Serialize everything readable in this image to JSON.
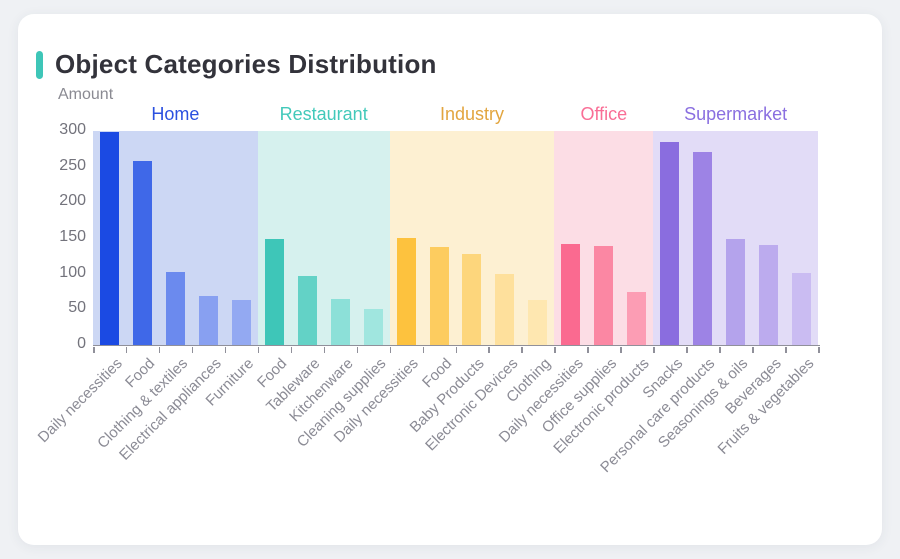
{
  "page": {
    "background": "#eff1f4",
    "card_background": "#ffffff"
  },
  "header": {
    "title": "Object Categories Distribution",
    "accent_color": "#3ec6b8",
    "title_color": "#33333b"
  },
  "chart_data": {
    "type": "bar",
    "title": "Object Categories Distribution",
    "ylabel": "Amount",
    "xlabel": "",
    "ylim": [
      0,
      300
    ],
    "yticks": [
      0,
      50,
      100,
      150,
      200,
      250,
      300
    ],
    "grid": false,
    "legend_position": "group-labels-above-bands",
    "axis_colors": {
      "axis_line": "#90909a",
      "y_tick_label": "#73737c",
      "x_tick_label": "#8b8b95",
      "amount_label": "#8a8a92"
    },
    "groups": [
      {
        "name": "Home",
        "label_color": "#2b50e0",
        "band_color": "#ccd7f4",
        "bars": [
          {
            "category": "Daily necessities",
            "value": 298,
            "color": "#1b4ae3"
          },
          {
            "category": "Food",
            "value": 258,
            "color": "#3f68e8"
          },
          {
            "category": "Clothing & textiles",
            "value": 102,
            "color": "#6b8aee"
          },
          {
            "category": "Electrical appliances",
            "value": 69,
            "color": "#88a0f1"
          },
          {
            "category": "Furniture",
            "value": 63,
            "color": "#93a9f2"
          }
        ]
      },
      {
        "name": "Restaurant",
        "label_color": "#42c9ba",
        "band_color": "#d6f1ee",
        "bars": [
          {
            "category": "Food",
            "value": 148,
            "color": "#3ec6b8"
          },
          {
            "category": "Tableware",
            "value": 97,
            "color": "#63d2c6"
          },
          {
            "category": "Kitchenware",
            "value": 65,
            "color": "#8ce0d8"
          },
          {
            "category": "Cleaning supplies",
            "value": 50,
            "color": "#a0e6df"
          }
        ]
      },
      {
        "name": "Industry",
        "label_color": "#e2a53f",
        "band_color": "#fdf0d2",
        "bars": [
          {
            "category": "Daily necessities",
            "value": 150,
            "color": "#fdc23e"
          },
          {
            "category": "Food",
            "value": 138,
            "color": "#fdcc5f"
          },
          {
            "category": "Baby Products",
            "value": 127,
            "color": "#fdd67c"
          },
          {
            "category": "Electronic Devices",
            "value": 99,
            "color": "#fee09c"
          },
          {
            "category": "Clothing",
            "value": 63,
            "color": "#fee7b0"
          }
        ]
      },
      {
        "name": "Office",
        "label_color": "#f96e96",
        "band_color": "#fcdde5",
        "bars": [
          {
            "category": "Daily necessities",
            "value": 142,
            "color": "#fa6a90"
          },
          {
            "category": "Office supplies",
            "value": 139,
            "color": "#fb87a3"
          },
          {
            "category": "Electronic products",
            "value": 75,
            "color": "#fc9db4"
          }
        ]
      },
      {
        "name": "Supermarket",
        "label_color": "#8a6fe0",
        "band_color": "#e2dcf7",
        "bars": [
          {
            "category": "Snacks",
            "value": 285,
            "color": "#8a6ddf"
          },
          {
            "category": "Personal care products",
            "value": 271,
            "color": "#9d83e5"
          },
          {
            "category": "Seasonings & oils",
            "value": 148,
            "color": "#b4a3ec"
          },
          {
            "category": "Beverages",
            "value": 140,
            "color": "#bcabee"
          },
          {
            "category": "Fruits & vegetables",
            "value": 101,
            "color": "#cabcf2"
          }
        ]
      }
    ]
  }
}
